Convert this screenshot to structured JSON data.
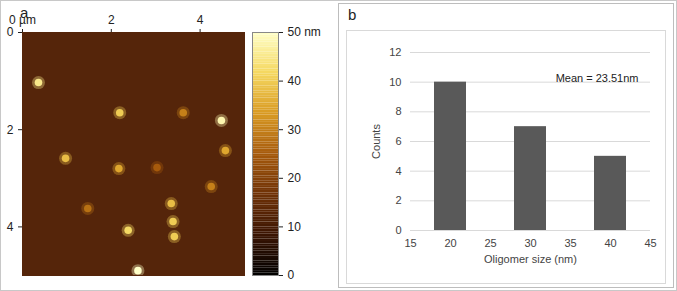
{
  "chart_data": [
    {
      "type": "scatter",
      "panel_label": "a",
      "x": [
        0.36,
        2.19,
        3.62,
        4.48,
        4.57,
        0.97,
        2.17,
        4.25,
        3.35,
        1.47,
        3.39,
        2.38,
        3.42,
        2.6,
        3.03
      ],
      "y": [
        1.03,
        1.65,
        1.65,
        1.81,
        2.43,
        2.59,
        2.8,
        3.17,
        3.52,
        3.62,
        3.89,
        4.07,
        4.2,
        4.9,
        2.78
      ],
      "heights": [
        45,
        40,
        30,
        48,
        35,
        38,
        35,
        30,
        38,
        28,
        40,
        42,
        40,
        50,
        25
      ],
      "xlim": [
        0,
        5
      ],
      "xticks": [
        {
          "value": 0,
          "label": "0 µm"
        },
        2,
        4
      ],
      "ylim": [
        0,
        5
      ],
      "yticks": [
        0,
        2,
        4
      ],
      "colorbar": {
        "range": [
          0,
          50
        ],
        "ticks": [
          0,
          10,
          20,
          30,
          40,
          {
            "value": 50,
            "label": "50 nm"
          }
        ]
      }
    },
    {
      "type": "bar",
      "panel_label": "b",
      "x": [
        20,
        30,
        40
      ],
      "values": [
        10,
        7,
        5
      ],
      "color": "#595959",
      "x_label": "Oligomer size (nm)",
      "y_label": "Counts",
      "xlim": [
        15,
        45
      ],
      "xticks": [
        15,
        20,
        25,
        30,
        35,
        40,
        45
      ],
      "ylim": [
        0,
        12
      ],
      "yticks": [
        0,
        2,
        4,
        6,
        8,
        10,
        12
      ],
      "grid": true,
      "annotations": [
        "Mean = 23.51nm"
      ]
    }
  ]
}
